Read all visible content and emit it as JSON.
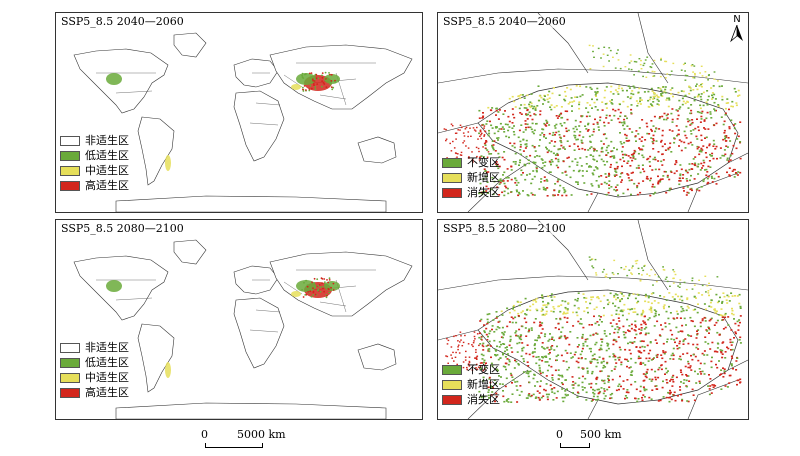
{
  "panels": {
    "tl": {
      "title": "SSP5_8.5 2040—2060"
    },
    "tr": {
      "title": "SSP5_8.5 2040—2060"
    },
    "bl": {
      "title": "SSP5_8.5 2080—2100"
    },
    "br": {
      "title": "SSP5_8.5 2080—2100"
    }
  },
  "world_legend": [
    {
      "label": "非适生区",
      "color": "#ffffff"
    },
    {
      "label": "低适生区",
      "color": "#6aaa3a"
    },
    {
      "label": "中适生区",
      "color": "#e6df5a"
    },
    {
      "label": "高适生区",
      "color": "#d2261c"
    }
  ],
  "change_legend": [
    {
      "label": "不变区",
      "color": "#6aaa3a"
    },
    {
      "label": "新增区",
      "color": "#e6df5a"
    },
    {
      "label": "消失区",
      "color": "#d2261c"
    }
  ],
  "north_label": "N",
  "scale_world": {
    "zero": "0",
    "value": "5000 km"
  },
  "scale_regional": {
    "zero": "0",
    "value": "500 km"
  },
  "colors": {
    "low": "#6aaa3a",
    "mid": "#e6df5a",
    "high": "#d2261c",
    "border": "#333333"
  }
}
